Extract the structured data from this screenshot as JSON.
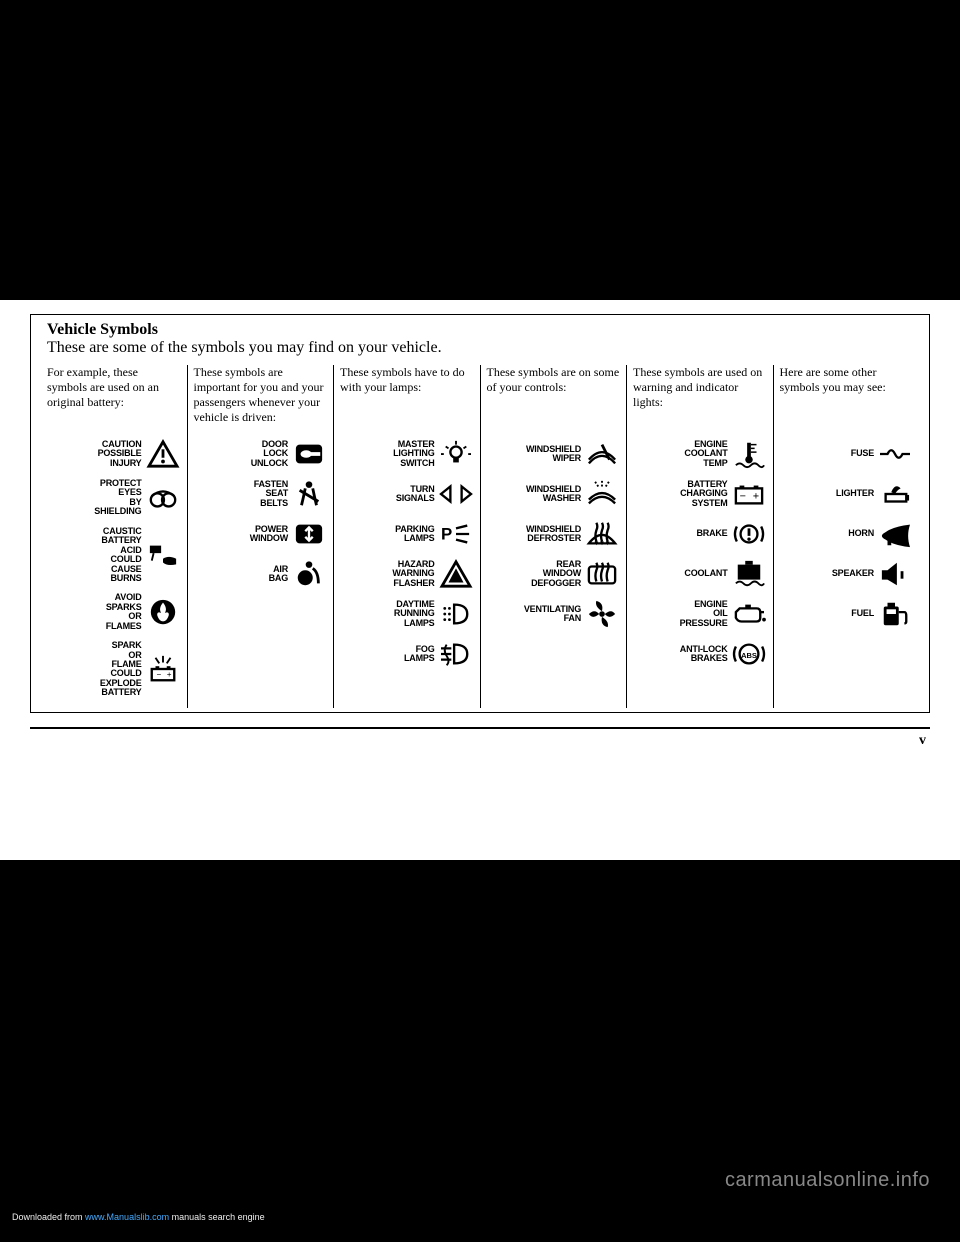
{
  "title": "Vehicle Symbols",
  "subtitle": "These are some of the symbols you may find on your vehicle.",
  "pageno": "v",
  "watermark": "carmanualsonline.info",
  "download_prefix": "Downloaded from ",
  "download_link": "www.Manualslib.com",
  "download_suffix": " manuals search engine",
  "columns": [
    {
      "head": "For example, these symbols are used on an original battery:",
      "items": [
        {
          "label": "CAUTION POSSIBLE INJURY",
          "icon": "warning-triangle"
        },
        {
          "label": "PROTECT EYES BY SHIELDING",
          "icon": "goggles"
        },
        {
          "label": "CAUSTIC BATTERY ACID COULD CAUSE BURNS",
          "icon": "acid-hand"
        },
        {
          "label": "AVOID SPARKS OR FLAMES",
          "icon": "flame-circle"
        },
        {
          "label": "SPARK OR FLAME COULD EXPLODE BATTERY",
          "icon": "battery-spark"
        }
      ]
    },
    {
      "head": "These symbols are important for you and your passengers whenever your vehicle is driven:",
      "items": [
        {
          "label": "DOOR LOCK UNLOCK",
          "icon": "door-lock"
        },
        {
          "label": "FASTEN SEAT BELTS",
          "icon": "seatbelt"
        },
        {
          "label": "POWER WINDOW",
          "icon": "power-window"
        },
        {
          "label": "AIR BAG",
          "icon": "airbag"
        }
      ]
    },
    {
      "head": "These symbols have to do with your lamps:",
      "items": [
        {
          "label": "MASTER LIGHTING SWITCH",
          "icon": "master-light"
        },
        {
          "label": "TURN SIGNALS",
          "icon": "turn-signals"
        },
        {
          "label": "PARKING LAMPS",
          "icon": "parking-lamps"
        },
        {
          "label": "HAZARD WARNING FLASHER",
          "icon": "hazard"
        },
        {
          "label": "DAYTIME RUNNING LAMPS",
          "icon": "drl"
        },
        {
          "label": "FOG LAMPS",
          "icon": "fog-lamps"
        }
      ]
    },
    {
      "head": "These symbols are on some of your controls:",
      "items": [
        {
          "label": "WINDSHIELD WIPER",
          "icon": "wiper"
        },
        {
          "label": "WINDSHIELD WASHER",
          "icon": "washer"
        },
        {
          "label": "WINDSHIELD DEFROSTER",
          "icon": "defrost-front"
        },
        {
          "label": "REAR WINDOW DEFOGGER",
          "icon": "defrost-rear"
        },
        {
          "label": "VENTILATING FAN",
          "icon": "fan"
        }
      ]
    },
    {
      "head": "These symbols are used on warning and indicator lights:",
      "items": [
        {
          "label": "ENGINE COOLANT TEMP",
          "icon": "temp"
        },
        {
          "label": "BATTERY CHARGING SYSTEM",
          "icon": "battery"
        },
        {
          "label": "BRAKE",
          "icon": "brake"
        },
        {
          "label": "COOLANT",
          "icon": "coolant"
        },
        {
          "label": "ENGINE OIL PRESSURE",
          "icon": "oil"
        },
        {
          "label": "ANTI-LOCK BRAKES",
          "icon": "abs"
        }
      ]
    },
    {
      "head": "Here are some other symbols you may see:",
      "items": [
        {
          "label": "FUSE",
          "icon": "fuse"
        },
        {
          "label": "LIGHTER",
          "icon": "lighter"
        },
        {
          "label": "HORN",
          "icon": "horn"
        },
        {
          "label": "SPEAKER",
          "icon": "speaker"
        },
        {
          "label": "FUEL",
          "icon": "fuel"
        }
      ]
    }
  ]
}
